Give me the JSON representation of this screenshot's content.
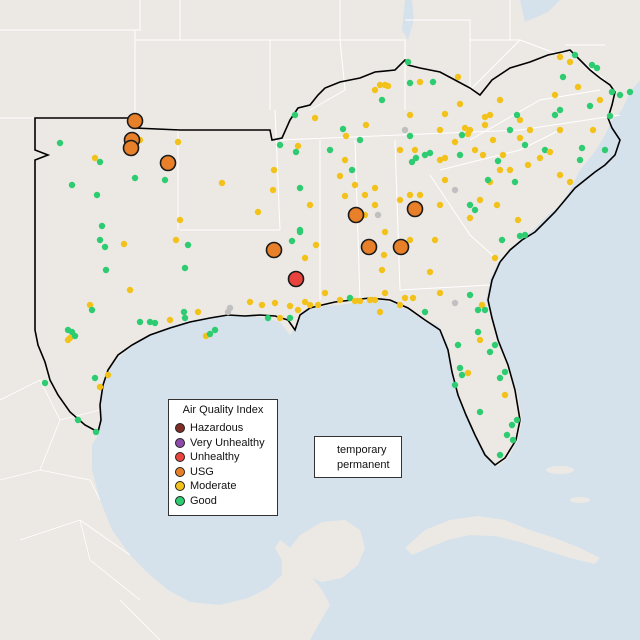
{
  "legend": {
    "title": "Air Quality Index",
    "categories": [
      {
        "label": "Hazardous",
        "color": "#7e2e24"
      },
      {
        "label": "Very Unhealthy",
        "color": "#8e4aa8"
      },
      {
        "label": "Unhealthy",
        "color": "#e8433c"
      },
      {
        "label": "USG",
        "color": "#e8802a"
      },
      {
        "label": "Moderate",
        "color": "#f2c21b"
      },
      {
        "label": "Good",
        "color": "#2ecc71"
      }
    ]
  },
  "site_type_legend": {
    "temporary_label": "temporary",
    "permanent_label": "permanent"
  },
  "colors": {
    "water": "#d5e2ec",
    "land": "#ece9e4",
    "border": "#ffffff",
    "region_outline": "#000000",
    "no_data": "#c0c0c0"
  },
  "region_outline": "EPA Region 4 and Region 6 states",
  "monitors": [
    {
      "aqi": "USG",
      "type": "temporary",
      "count": 10
    },
    {
      "aqi": "Unhealthy",
      "type": "temporary",
      "count": 1
    },
    {
      "aqi": "Moderate",
      "type": "permanent",
      "count": 120
    },
    {
      "aqi": "Good",
      "type": "permanent",
      "count": 140
    }
  ]
}
